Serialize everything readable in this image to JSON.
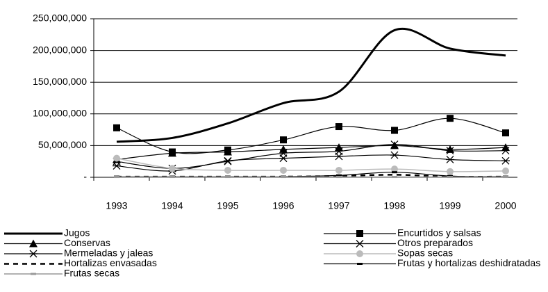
{
  "chart_data": {
    "type": "line",
    "categories": [
      "1993",
      "1994",
      "1995",
      "1996",
      "1997",
      "1998",
      "1999",
      "2000"
    ],
    "ylim": [
      0,
      250000000
    ],
    "yticks": [
      {
        "value": 0,
        "label": "-"
      },
      {
        "value": 50000000,
        "label": "50,000,000"
      },
      {
        "value": 100000000,
        "label": "100,000,000"
      },
      {
        "value": 150000000,
        "label": "150,000,000"
      },
      {
        "value": 200000000,
        "label": "200,000,000"
      },
      {
        "value": 250000000,
        "label": "250,000,000"
      }
    ],
    "grid": true,
    "legend": "bottom",
    "series": [
      {
        "name": "Jugos",
        "color": "#000000",
        "width": 3,
        "marker": "none",
        "smooth": true,
        "values": [
          56000000,
          62000000,
          85000000,
          117000000,
          135000000,
          232000000,
          203000000,
          192000000
        ]
      },
      {
        "name": "Encurtidos y salsas",
        "color": "#000000",
        "width": 1.2,
        "marker": "square",
        "smooth": true,
        "values": [
          78000000,
          40000000,
          43000000,
          59000000,
          80000000,
          74000000,
          93000000,
          70000000
        ]
      },
      {
        "name": "Conservas",
        "color": "#000000",
        "width": 1.2,
        "marker": "triangle",
        "smooth": true,
        "values": [
          28000000,
          38000000,
          40000000,
          44000000,
          47000000,
          50000000,
          44000000,
          47000000
        ]
      },
      {
        "name": "Otros preparados",
        "color": "#000000",
        "width": 1.2,
        "marker": "x",
        "smooth": true,
        "values": [
          25000000,
          14000000,
          25000000,
          38000000,
          41000000,
          52000000,
          42000000,
          42000000
        ]
      },
      {
        "name": "Mermeladas y jaleas",
        "color": "#000000",
        "width": 1.2,
        "marker": "star",
        "smooth": true,
        "values": [
          18000000,
          10000000,
          26000000,
          30000000,
          33000000,
          35000000,
          28000000,
          26000000
        ]
      },
      {
        "name": "Sopas secas",
        "color": "#bbbbbb",
        "width": 1.5,
        "marker": "circle",
        "smooth": true,
        "values": [
          30000000,
          14000000,
          11000000,
          11000000,
          11000000,
          13000000,
          9000000,
          10000000
        ]
      },
      {
        "name": "Hortalizas envasadas",
        "color": "#000000",
        "width": 2.5,
        "marker": "none",
        "dashed": true,
        "smooth": true,
        "values": [
          1000000,
          1000000,
          1000000,
          1000000,
          2000000,
          4000000,
          1000000,
          1000000
        ]
      },
      {
        "name": "Frutas y hortalizas deshidratadas",
        "color": "#000000",
        "width": 1.2,
        "marker": "dash",
        "smooth": true,
        "values": [
          1000000,
          1000000,
          1000000,
          1000000,
          3000000,
          8000000,
          2000000,
          1000000
        ]
      },
      {
        "name": "Frutas secas",
        "color": "#999999",
        "width": 1.5,
        "marker": "dash",
        "smooth": true,
        "values": [
          500000,
          500000,
          500000,
          500000,
          500000,
          500000,
          500000,
          500000
        ]
      }
    ]
  }
}
